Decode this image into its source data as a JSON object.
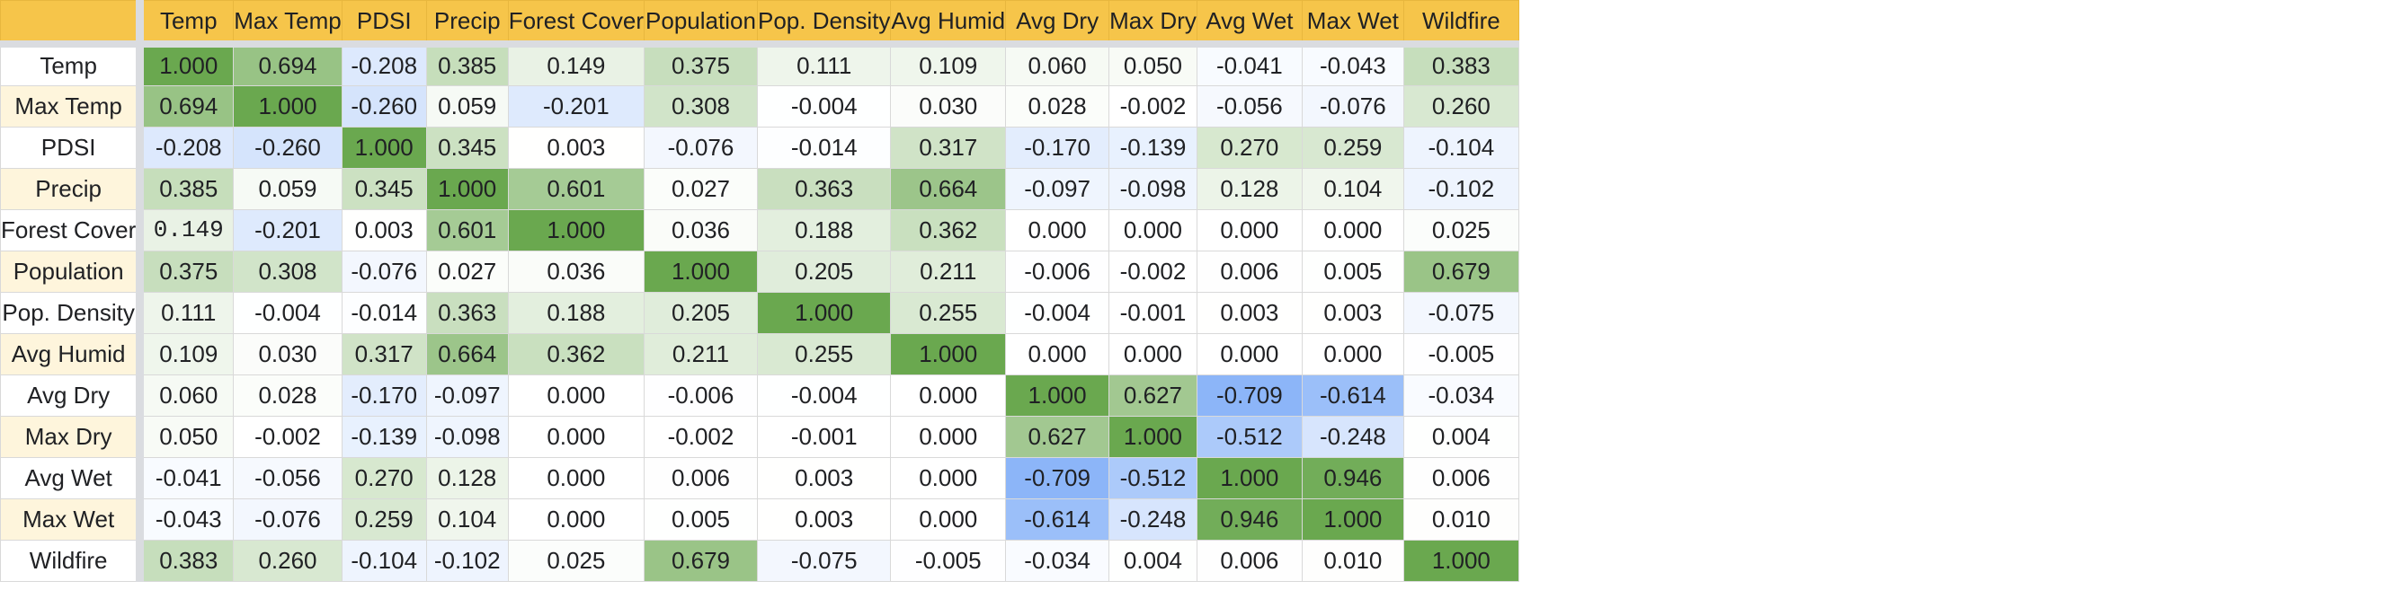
{
  "sheet": {
    "columns": [
      "Temp",
      "Max Temp",
      "PDSI",
      "Precip",
      "Forest Cover",
      "Population",
      "Pop. Density",
      "Avg Humid",
      "Avg Dry",
      "Max Dry",
      "Avg Wet",
      "Max Wet",
      "Wildfire"
    ],
    "rows": [
      {
        "label": "Temp",
        "values": [
          "1.000",
          "0.694",
          "-0.208",
          "0.385",
          "0.149",
          "0.375",
          "0.111",
          "0.109",
          "0.060",
          "0.050",
          "-0.041",
          "-0.043",
          "0.383"
        ]
      },
      {
        "label": "Max Temp",
        "values": [
          "0.694",
          "1.000",
          "-0.260",
          "0.059",
          "-0.201",
          "0.308",
          "-0.004",
          "0.030",
          "0.028",
          "-0.002",
          "-0.056",
          "-0.076",
          "0.260"
        ]
      },
      {
        "label": "PDSI",
        "values": [
          "-0.208",
          "-0.260",
          "1.000",
          "0.345",
          "0.003",
          "-0.076",
          "-0.014",
          "0.317",
          "-0.170",
          "-0.139",
          "0.270",
          "0.259",
          "-0.104"
        ]
      },
      {
        "label": "Precip",
        "values": [
          "0.385",
          "0.059",
          "0.345",
          "1.000",
          "0.601",
          "0.027",
          "0.363",
          "0.664",
          "-0.097",
          "-0.098",
          "0.128",
          "0.104",
          "-0.102"
        ]
      },
      {
        "label": "Forest Cover",
        "values": [
          "0.149",
          "-0.201",
          "0.003",
          "0.601",
          "1.000",
          "0.036",
          "0.188",
          "0.362",
          "0.000",
          "0.000",
          "0.000",
          "0.000",
          "0.025"
        ]
      },
      {
        "label": "Population",
        "values": [
          "0.375",
          "0.308",
          "-0.076",
          "0.027",
          "0.036",
          "1.000",
          "0.205",
          "0.211",
          "-0.006",
          "-0.002",
          "0.006",
          "0.005",
          "0.679"
        ]
      },
      {
        "label": "Pop. Density",
        "values": [
          "0.111",
          "-0.004",
          "-0.014",
          "0.363",
          "0.188",
          "0.205",
          "1.000",
          "0.255",
          "-0.004",
          "-0.001",
          "0.003",
          "0.003",
          "-0.075"
        ]
      },
      {
        "label": "Avg Humid",
        "values": [
          "0.109",
          "0.030",
          "0.317",
          "0.664",
          "0.362",
          "0.211",
          "0.255",
          "1.000",
          "0.000",
          "0.000",
          "0.000",
          "0.000",
          "-0.005"
        ]
      },
      {
        "label": "Avg Dry",
        "values": [
          "0.060",
          "0.028",
          "-0.170",
          "-0.097",
          "0.000",
          "-0.006",
          "-0.004",
          "0.000",
          "1.000",
          "0.627",
          "-0.709",
          "-0.614",
          "-0.034"
        ]
      },
      {
        "label": "Max Dry",
        "values": [
          "0.050",
          "-0.002",
          "-0.139",
          "-0.098",
          "0.000",
          "-0.002",
          "-0.001",
          "0.000",
          "0.627",
          "1.000",
          "-0.512",
          "-0.248",
          "0.004"
        ]
      },
      {
        "label": "Avg Wet",
        "values": [
          "-0.041",
          "-0.056",
          "0.270",
          "0.128",
          "0.000",
          "0.006",
          "0.003",
          "0.000",
          "-0.709",
          "-0.512",
          "1.000",
          "0.946",
          "0.006"
        ]
      },
      {
        "label": "Max Wet",
        "values": [
          "-0.043",
          "-0.076",
          "0.259",
          "0.104",
          "0.000",
          "0.005",
          "0.003",
          "0.000",
          "-0.614",
          "-0.248",
          "0.946",
          "1.000",
          "0.010"
        ]
      },
      {
        "label": "Wildfire",
        "values": [
          "0.383",
          "0.260",
          "-0.104",
          "-0.102",
          "0.025",
          "0.679",
          "-0.075",
          "-0.005",
          "-0.034",
          "0.004",
          "0.006",
          "0.010",
          "1.000"
        ]
      }
    ]
  },
  "colors": {
    "header_bg": "#f6c54a",
    "row_label_alt_bg": "#fef5dc",
    "positive_strong": "#6aa84f",
    "negative_strong": "#8ab4f8",
    "neutral": "#ffffff"
  }
}
